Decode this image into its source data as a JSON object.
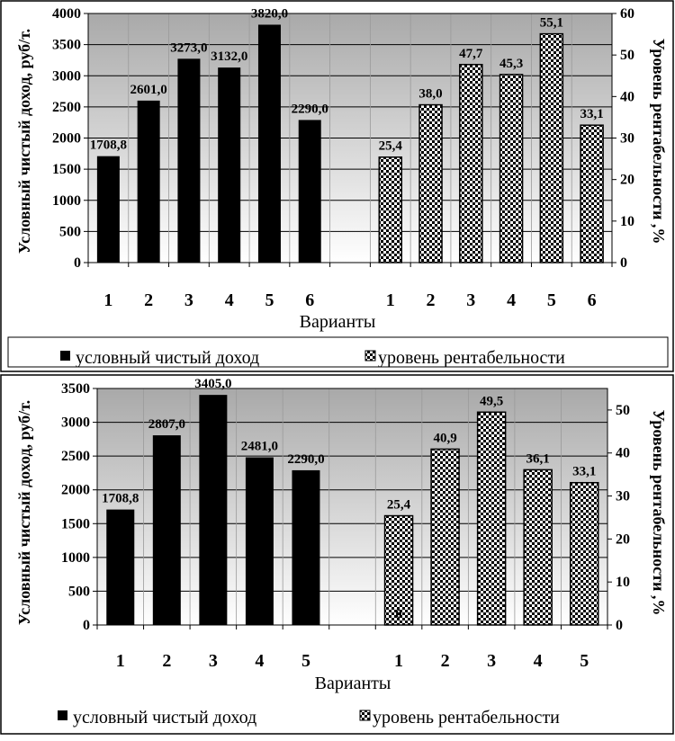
{
  "chart_data": [
    {
      "type": "bar",
      "x_title": "Варианты",
      "y_left_label": "Условный чистый доход, руб/т.",
      "y_right_label": "Уровень рентабельности ,%",
      "y_left_lim": [
        0,
        4000
      ],
      "y_left_ticks": [
        "0",
        "500",
        "1000",
        "1500",
        "2000",
        "2500",
        "3000",
        "3500",
        "4000"
      ],
      "y_right_lim": [
        0,
        60
      ],
      "y_right_ticks": [
        "0",
        "10",
        "20",
        "30",
        "40",
        "50",
        "60"
      ],
      "grid": true,
      "legend_position": "bottom",
      "legend": [
        "условный чистый доход",
        "уровень рентабельности"
      ],
      "income_series": {
        "name": "условный чистый доход",
        "categories": [
          "1",
          "2",
          "3",
          "4",
          "5",
          "6"
        ],
        "values": [
          1708.8,
          2601.0,
          3273.0,
          3132.0,
          3820.0,
          2290.0
        ],
        "labels": [
          "1708,8",
          "2601,0",
          "3273,0",
          "3132,0",
          "3820,0",
          "2290,0"
        ]
      },
      "profit_series": {
        "name": "уровень рентабельности",
        "categories": [
          "1",
          "2",
          "3",
          "4",
          "5",
          "6"
        ],
        "values": [
          25.4,
          38.0,
          47.7,
          45.3,
          55.1,
          33.1
        ],
        "labels": [
          "25,4",
          "38,0",
          "47,7",
          "45,3",
          "55,1",
          "33,1"
        ]
      }
    },
    {
      "type": "bar",
      "x_title": "Варианты",
      "y_left_label": "Условный чистый доход, руб/т.",
      "y_right_label": "Уровень рентабельности ,%",
      "y_left_lim": [
        0,
        3500
      ],
      "y_left_ticks": [
        "0",
        "500",
        "1000",
        "1500",
        "2000",
        "2500",
        "3000",
        "3500"
      ],
      "y_right_lim": [
        0,
        55
      ],
      "y_right_ticks": [
        "0",
        "10",
        "20",
        "30",
        "40",
        "50"
      ],
      "grid": true,
      "legend_position": "bottom",
      "legend": [
        "условный чистый доход",
        "уровень рентабельности"
      ],
      "income_series": {
        "name": "условный чистый доход",
        "categories": [
          "1",
          "2",
          "3",
          "4",
          "5"
        ],
        "values": [
          1708.8,
          2807.0,
          3405.0,
          2481.0,
          2290.0
        ],
        "labels": [
          "1708,8",
          "2807,0",
          "3405,0",
          "2481,0",
          "2290,0"
        ]
      },
      "profit_series": {
        "name": "уровень рентабельности",
        "categories": [
          "1",
          "2",
          "3",
          "4",
          "5"
        ],
        "values": [
          25.4,
          40.9,
          49.5,
          36.1,
          33.1
        ],
        "labels": [
          "25,4",
          "40,9",
          "49,5",
          "36,1",
          "33,1"
        ]
      },
      "extra_annotation": "0"
    }
  ]
}
